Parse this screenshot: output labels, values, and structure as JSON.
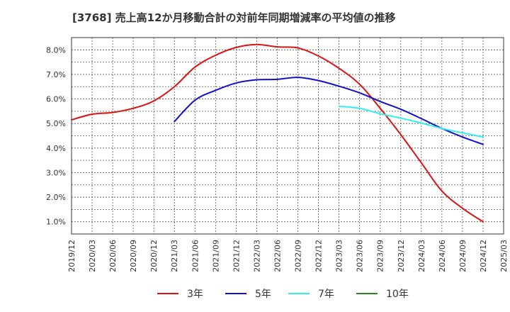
{
  "chart_data": {
    "type": "line",
    "title": "[3768]  売上高12か月移動合計の対前年同期増減率の平均値の推移",
    "xlabel": "",
    "ylabel": "",
    "x": [
      "2019/12",
      "2020/03",
      "2020/06",
      "2020/09",
      "2020/12",
      "2021/03",
      "2021/06",
      "2021/09",
      "2021/12",
      "2022/03",
      "2022/06",
      "2022/09",
      "2022/12",
      "2023/03",
      "2023/06",
      "2023/09",
      "2023/12",
      "2024/03",
      "2024/06",
      "2024/09",
      "2024/12",
      "2025/03"
    ],
    "ylim": [
      0.5,
      8.5
    ],
    "yticks": [
      1.0,
      2.0,
      3.0,
      4.0,
      5.0,
      6.0,
      7.0,
      8.0
    ],
    "ytick_labels": [
      "1.0%",
      "2.0%",
      "3.0%",
      "4.0%",
      "5.0%",
      "6.0%",
      "7.0%",
      "8.0%"
    ],
    "grid": true,
    "legend_position": "bottom",
    "series": [
      {
        "name": "3年",
        "color": "#dd1111",
        "values": [
          5.15,
          5.38,
          5.45,
          5.62,
          5.92,
          6.5,
          7.3,
          7.78,
          8.1,
          8.22,
          8.12,
          8.08,
          7.75,
          7.25,
          6.6,
          5.62,
          4.55,
          3.4,
          2.25,
          1.55,
          1.0,
          null
        ]
      },
      {
        "name": "5年",
        "color": "#1111cc",
        "values": [
          null,
          null,
          null,
          null,
          null,
          5.08,
          5.95,
          6.35,
          6.65,
          6.78,
          6.8,
          6.88,
          6.75,
          6.52,
          6.25,
          5.9,
          5.58,
          5.2,
          4.8,
          4.45,
          4.15,
          null
        ]
      },
      {
        "name": "7年",
        "color": "#33eeee",
        "values": [
          null,
          null,
          null,
          null,
          null,
          null,
          null,
          null,
          null,
          null,
          null,
          null,
          null,
          5.7,
          5.62,
          5.4,
          5.22,
          5.02,
          4.8,
          4.62,
          4.45,
          null
        ]
      },
      {
        "name": "10年",
        "color": "#228822",
        "values": [
          null,
          null,
          null,
          null,
          null,
          null,
          null,
          null,
          null,
          null,
          null,
          null,
          null,
          null,
          null,
          null,
          null,
          null,
          null,
          null,
          null,
          null
        ]
      }
    ]
  }
}
